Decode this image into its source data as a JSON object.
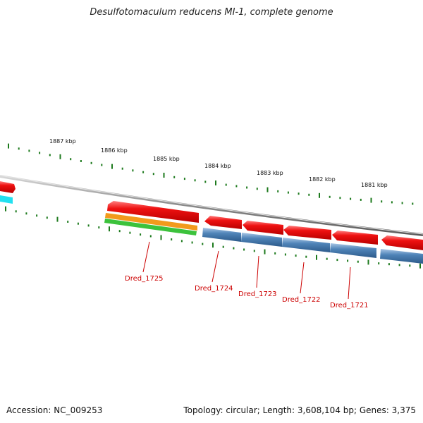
{
  "header": {
    "title": "Desulfotomaculum reducens MI-1, complete genome"
  },
  "scale_labels": [
    "1887 kbp",
    "1886 kbp",
    "1885 kbp",
    "1884 kbp",
    "1883 kbp",
    "1882 kbp",
    "1881 kbp"
  ],
  "genes": [
    {
      "label": "Dred_1725"
    },
    {
      "label": "Dred_1724"
    },
    {
      "label": "Dred_1723"
    },
    {
      "label": "Dred_1722"
    },
    {
      "label": "Dred_1721"
    }
  ],
  "footer": {
    "accession": "Accession: NC_009253",
    "stats": "Topology: circular; Length: 3,608,104 bp; Genes: 3,375"
  },
  "colors": {
    "forward_cds": "#ee1111",
    "reverse_cds": "#4f84b8",
    "cyan_feature": "#22e0f0",
    "orange_feature": "#f29a1c",
    "green_feature": "#3cc23c",
    "backbone": "#8a8a8a",
    "ticks": "#1d7a1d",
    "gene_label": "#cc0000"
  }
}
